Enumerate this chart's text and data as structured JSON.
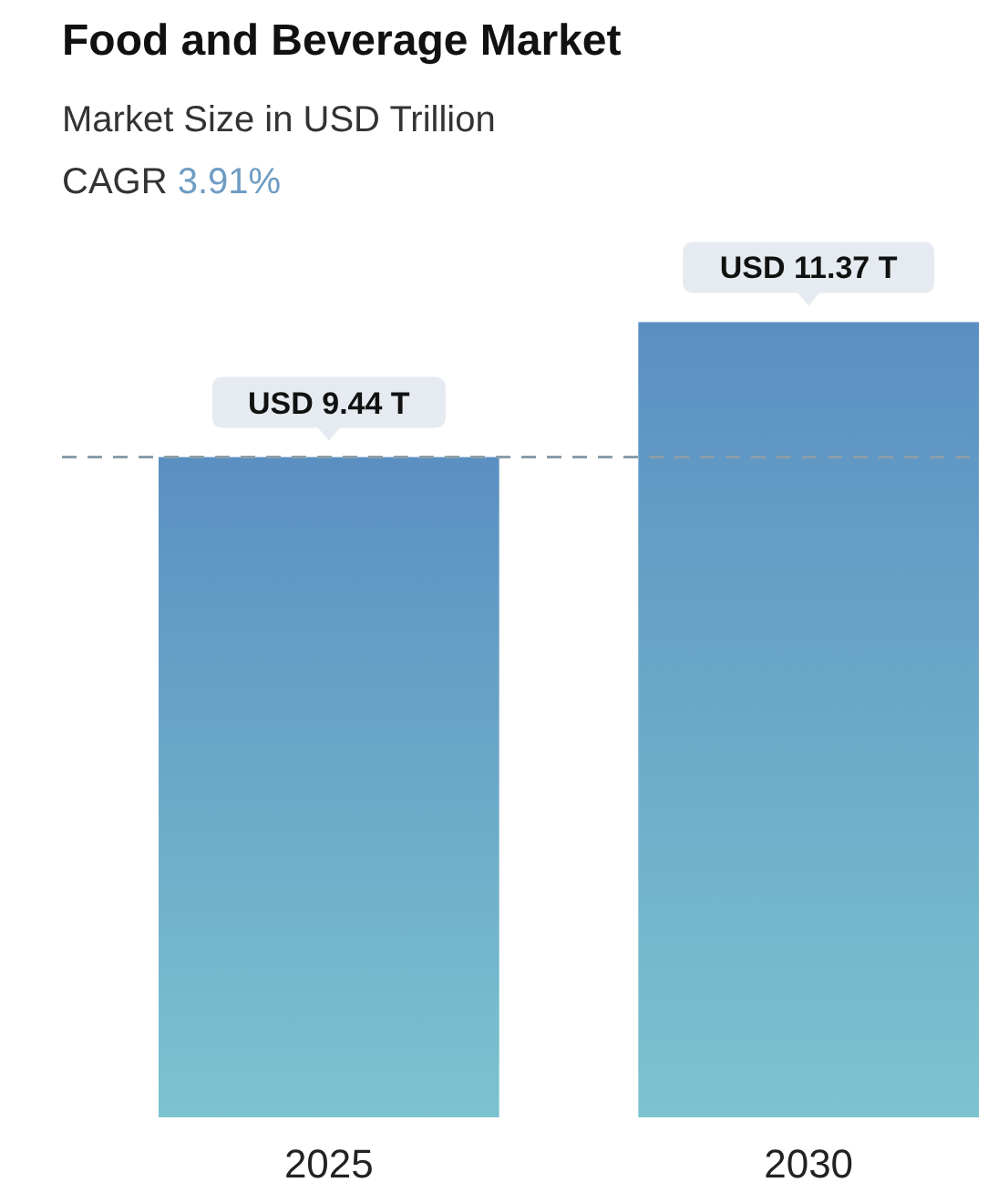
{
  "chart_data": {
    "type": "bar",
    "title": "Food and Beverage Market",
    "subtitle": "Market Size in USD Trillion",
    "annotations": [
      "CAGR 3.91%"
    ],
    "categories": [
      "2025",
      "2030"
    ],
    "values": [
      9.44,
      11.37
    ],
    "color": "#5b8fc2",
    "value_labels": [
      "USD 9.44 T",
      "USD 11.37 T"
    ],
    "ref_lines": [
      {
        "axis": "y",
        "value": 9.44,
        "color": "#8a9eaa",
        "line_style": "dashed"
      }
    ]
  }
}
